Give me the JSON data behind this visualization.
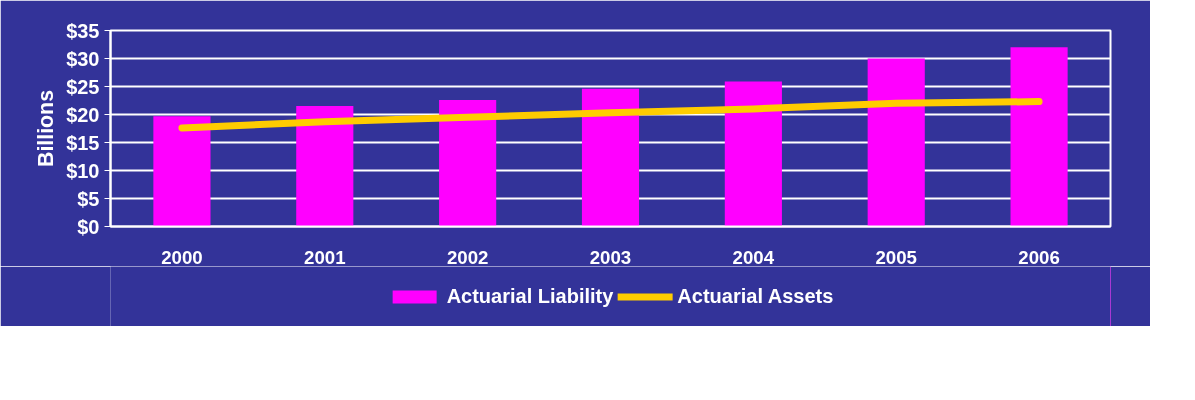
{
  "chart_data": {
    "type": "bar",
    "ylabel": "Billions",
    "categories": [
      "2000",
      "2001",
      "2002",
      "2003",
      "2004",
      "2005",
      "2006"
    ],
    "series": [
      {
        "name": "Actuarial Liability",
        "color": "#ff00ff",
        "values": [
          19.7,
          21.5,
          22.6,
          24.6,
          25.9,
          30.0,
          32.0
        ]
      },
      {
        "name": "Actuarial Assets",
        "type": "line",
        "color": "#ffcc00",
        "values": [
          17.6,
          18.7,
          19.5,
          20.3,
          21.0,
          22.0,
          22.3
        ]
      }
    ],
    "ylim": [
      0,
      35
    ],
    "yticks": [
      {
        "value": 0,
        "label": "$0"
      },
      {
        "value": 5,
        "label": "$5"
      },
      {
        "value": 10,
        "label": "$10"
      },
      {
        "value": 15,
        "label": "$15"
      },
      {
        "value": 20,
        "label": "$20"
      },
      {
        "value": 25,
        "label": "$25"
      },
      {
        "value": 30,
        "label": "$30"
      },
      {
        "value": 35,
        "label": "$35"
      }
    ],
    "grid": "y",
    "legend": "bottom"
  }
}
